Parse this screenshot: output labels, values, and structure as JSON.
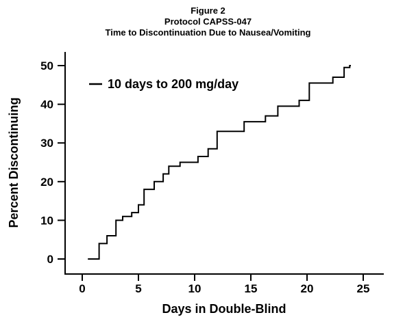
{
  "titles": {
    "line1": "Figure 2",
    "line2": "Protocol CAPSS-047",
    "line3": "Time to Discontinuation Due to Nausea/Vomiting"
  },
  "colors": {
    "line": "#000000",
    "background": "#ffffff"
  },
  "chart_data": {
    "type": "line",
    "subtype": "step",
    "title": "Figure 2 / Protocol CAPSS-047 / Time to Discontinuation Due to Nausea/Vomiting",
    "xlabel": "Days in Double-Blind",
    "ylabel": "Percent Discontinuing",
    "xlim": [
      0,
      25
    ],
    "ylim": [
      0,
      50
    ],
    "x_ticks": [
      0,
      5,
      10,
      15,
      20,
      25
    ],
    "y_ticks": [
      0,
      10,
      20,
      30,
      40,
      50
    ],
    "grid": false,
    "legend_position": "top-left-inside",
    "legend": [
      {
        "label": "10 days to 200 mg/day",
        "marker": "line"
      }
    ],
    "series": [
      {
        "name": "10 days to 200 mg/day",
        "step": true,
        "x_end": 23.9,
        "points": [
          [
            0.5,
            0
          ],
          [
            1.5,
            4
          ],
          [
            2.2,
            6
          ],
          [
            3.0,
            10
          ],
          [
            3.6,
            11
          ],
          [
            4.4,
            12
          ],
          [
            5.0,
            14
          ],
          [
            5.5,
            18
          ],
          [
            6.4,
            20
          ],
          [
            7.2,
            22
          ],
          [
            7.7,
            24
          ],
          [
            8.7,
            25
          ],
          [
            10.3,
            26.5
          ],
          [
            11.2,
            28.5
          ],
          [
            12.0,
            33
          ],
          [
            14.4,
            35.5
          ],
          [
            16.3,
            37
          ],
          [
            17.4,
            39.5
          ],
          [
            19.3,
            41
          ],
          [
            20.2,
            45.5
          ],
          [
            22.3,
            47
          ],
          [
            23.3,
            49.5
          ],
          [
            23.8,
            50
          ]
        ]
      }
    ]
  }
}
